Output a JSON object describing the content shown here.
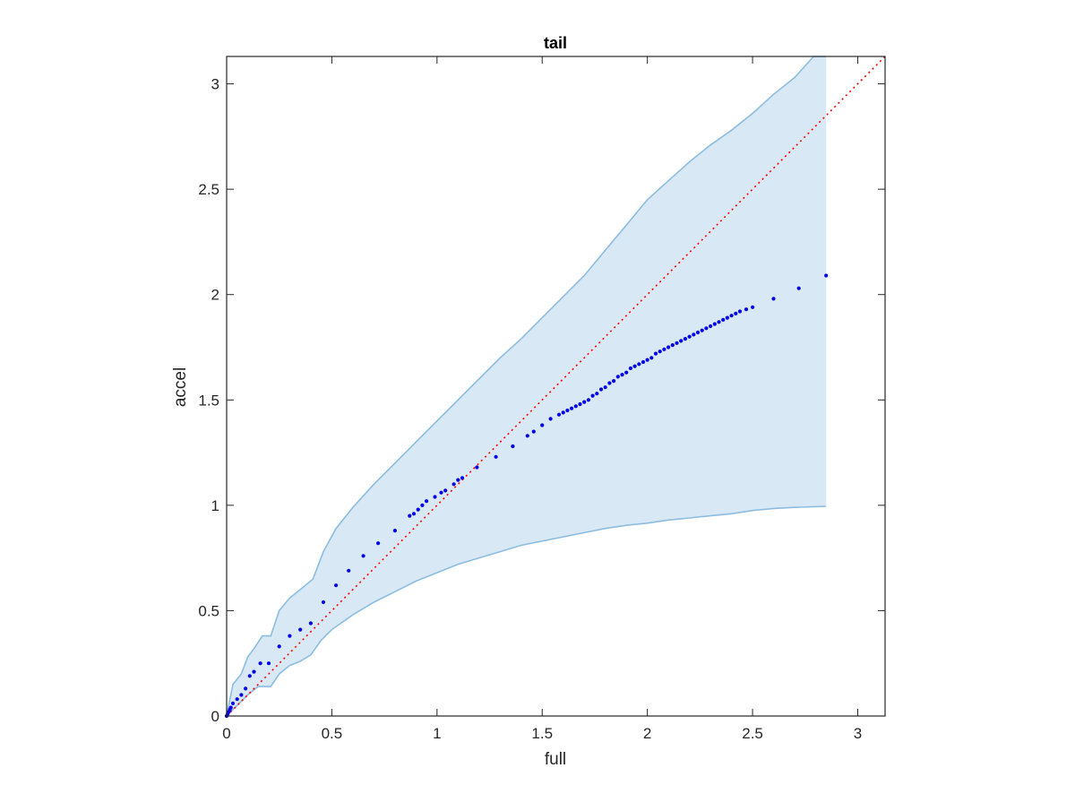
{
  "chart_data": {
    "type": "scatter",
    "title": "tail",
    "xlabel": "full",
    "ylabel": "accel",
    "xlim": [
      0,
      3.13
    ],
    "ylim": [
      0,
      3.13
    ],
    "xticks": [
      0,
      0.5,
      1,
      1.5,
      2,
      2.5,
      3
    ],
    "yticks": [
      0,
      0.5,
      1,
      1.5,
      2,
      2.5,
      3
    ],
    "xtick_labels": [
      "0",
      "0.5",
      "1",
      "1.5",
      "2",
      "2.5",
      "3"
    ],
    "ytick_labels": [
      "0",
      "0.5",
      "1",
      "1.5",
      "2",
      "2.5",
      "3"
    ],
    "grid": false,
    "colors": {
      "band_fill": "#d9e8f5",
      "band_edge": "#8cbde0",
      "points": "#0000e6",
      "reference_line": "#ff0000"
    },
    "band": {
      "upper": [
        [
          0,
          0
        ],
        [
          0.01,
          0.05
        ],
        [
          0.03,
          0.15
        ],
        [
          0.07,
          0.2
        ],
        [
          0.1,
          0.28
        ],
        [
          0.13,
          0.32
        ],
        [
          0.17,
          0.38
        ],
        [
          0.21,
          0.38
        ],
        [
          0.25,
          0.5
        ],
        [
          0.3,
          0.56
        ],
        [
          0.35,
          0.6
        ],
        [
          0.41,
          0.65
        ],
        [
          0.46,
          0.78
        ],
        [
          0.52,
          0.89
        ],
        [
          0.6,
          0.99
        ],
        [
          0.7,
          1.1
        ],
        [
          0.8,
          1.2
        ],
        [
          0.9,
          1.3
        ],
        [
          1.0,
          1.4
        ],
        [
          1.1,
          1.5
        ],
        [
          1.2,
          1.6
        ],
        [
          1.3,
          1.7
        ],
        [
          1.4,
          1.79
        ],
        [
          1.5,
          1.89
        ],
        [
          1.6,
          1.99
        ],
        [
          1.7,
          2.09
        ],
        [
          1.8,
          2.21
        ],
        [
          1.9,
          2.33
        ],
        [
          2.0,
          2.45
        ],
        [
          2.1,
          2.54
        ],
        [
          2.2,
          2.63
        ],
        [
          2.3,
          2.71
        ],
        [
          2.4,
          2.78
        ],
        [
          2.5,
          2.86
        ],
        [
          2.6,
          2.95
        ],
        [
          2.7,
          3.03
        ],
        [
          2.79,
          3.13
        ],
        [
          2.85,
          3.13
        ]
      ],
      "lower": [
        [
          0,
          0
        ],
        [
          0.05,
          0.05
        ],
        [
          0.1,
          0.1
        ],
        [
          0.15,
          0.14
        ],
        [
          0.21,
          0.14
        ],
        [
          0.25,
          0.2
        ],
        [
          0.3,
          0.24
        ],
        [
          0.35,
          0.26
        ],
        [
          0.4,
          0.29
        ],
        [
          0.45,
          0.36
        ],
        [
          0.5,
          0.41
        ],
        [
          0.6,
          0.48
        ],
        [
          0.7,
          0.54
        ],
        [
          0.8,
          0.59
        ],
        [
          0.9,
          0.64
        ],
        [
          1.0,
          0.68
        ],
        [
          1.1,
          0.72
        ],
        [
          1.2,
          0.75
        ],
        [
          1.3,
          0.78
        ],
        [
          1.4,
          0.81
        ],
        [
          1.5,
          0.83
        ],
        [
          1.6,
          0.85
        ],
        [
          1.7,
          0.87
        ],
        [
          1.8,
          0.89
        ],
        [
          1.9,
          0.905
        ],
        [
          2.0,
          0.915
        ],
        [
          2.1,
          0.93
        ],
        [
          2.2,
          0.94
        ],
        [
          2.3,
          0.95
        ],
        [
          2.4,
          0.96
        ],
        [
          2.5,
          0.975
        ],
        [
          2.6,
          0.985
        ],
        [
          2.7,
          0.99
        ],
        [
          2.85,
          0.995
        ]
      ]
    },
    "reference_line": {
      "style": "dotted",
      "x": [
        0,
        3.13
      ],
      "y": [
        0,
        3.13
      ]
    },
    "points": [
      [
        0.0,
        0.0
      ],
      [
        0.005,
        0.01
      ],
      [
        0.01,
        0.02
      ],
      [
        0.015,
        0.03
      ],
      [
        0.02,
        0.04
      ],
      [
        0.03,
        0.06
      ],
      [
        0.05,
        0.08
      ],
      [
        0.07,
        0.1
      ],
      [
        0.09,
        0.13
      ],
      [
        0.11,
        0.19
      ],
      [
        0.13,
        0.21
      ],
      [
        0.16,
        0.25
      ],
      [
        0.2,
        0.25
      ],
      [
        0.25,
        0.33
      ],
      [
        0.3,
        0.38
      ],
      [
        0.35,
        0.41
      ],
      [
        0.4,
        0.44
      ],
      [
        0.46,
        0.54
      ],
      [
        0.52,
        0.62
      ],
      [
        0.58,
        0.69
      ],
      [
        0.65,
        0.76
      ],
      [
        0.72,
        0.82
      ],
      [
        0.8,
        0.88
      ],
      [
        0.87,
        0.95
      ],
      [
        0.89,
        0.96
      ],
      [
        0.91,
        0.98
      ],
      [
        0.93,
        1.0
      ],
      [
        0.95,
        1.02
      ],
      [
        0.99,
        1.04
      ],
      [
        1.02,
        1.06
      ],
      [
        1.04,
        1.07
      ],
      [
        1.08,
        1.1
      ],
      [
        1.1,
        1.12
      ],
      [
        1.12,
        1.13
      ],
      [
        1.19,
        1.18
      ],
      [
        1.28,
        1.23
      ],
      [
        1.36,
        1.28
      ],
      [
        1.43,
        1.33
      ],
      [
        1.46,
        1.35
      ],
      [
        1.5,
        1.38
      ],
      [
        1.54,
        1.41
      ],
      [
        1.58,
        1.43
      ],
      [
        1.6,
        1.44
      ],
      [
        1.62,
        1.45
      ],
      [
        1.64,
        1.46
      ],
      [
        1.66,
        1.47
      ],
      [
        1.68,
        1.48
      ],
      [
        1.7,
        1.49
      ],
      [
        1.72,
        1.5
      ],
      [
        1.74,
        1.52
      ],
      [
        1.76,
        1.53
      ],
      [
        1.78,
        1.55
      ],
      [
        1.8,
        1.56
      ],
      [
        1.82,
        1.58
      ],
      [
        1.84,
        1.59
      ],
      [
        1.86,
        1.61
      ],
      [
        1.88,
        1.62
      ],
      [
        1.9,
        1.63
      ],
      [
        1.92,
        1.65
      ],
      [
        1.94,
        1.66
      ],
      [
        1.96,
        1.67
      ],
      [
        1.98,
        1.68
      ],
      [
        2.0,
        1.69
      ],
      [
        2.02,
        1.7
      ],
      [
        2.04,
        1.72
      ],
      [
        2.06,
        1.73
      ],
      [
        2.08,
        1.74
      ],
      [
        2.1,
        1.75
      ],
      [
        2.12,
        1.76
      ],
      [
        2.14,
        1.77
      ],
      [
        2.16,
        1.78
      ],
      [
        2.18,
        1.79
      ],
      [
        2.2,
        1.8
      ],
      [
        2.22,
        1.81
      ],
      [
        2.24,
        1.82
      ],
      [
        2.26,
        1.83
      ],
      [
        2.28,
        1.84
      ],
      [
        2.3,
        1.85
      ],
      [
        2.32,
        1.86
      ],
      [
        2.34,
        1.87
      ],
      [
        2.36,
        1.88
      ],
      [
        2.38,
        1.89
      ],
      [
        2.4,
        1.9
      ],
      [
        2.42,
        1.91
      ],
      [
        2.44,
        1.92
      ],
      [
        2.47,
        1.93
      ],
      [
        2.5,
        1.94
      ],
      [
        2.6,
        1.98
      ],
      [
        2.72,
        2.03
      ],
      [
        2.85,
        2.09
      ]
    ]
  }
}
